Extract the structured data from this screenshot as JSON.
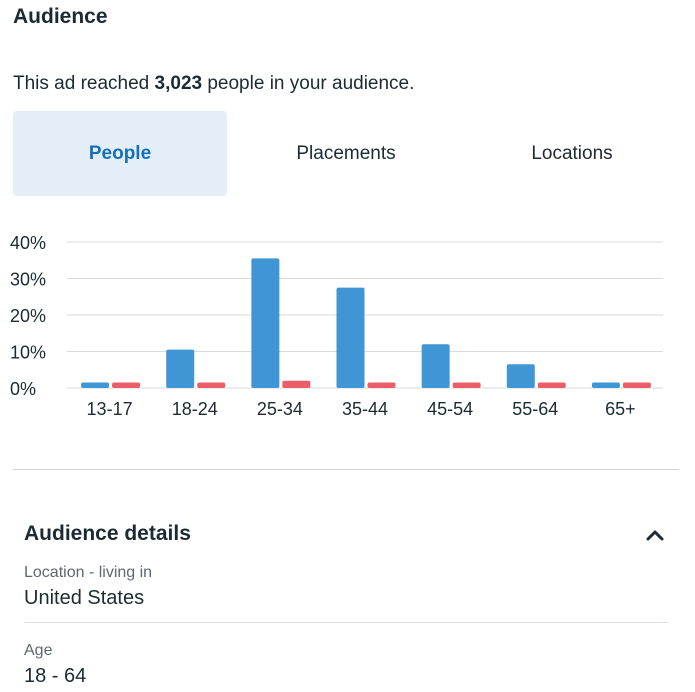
{
  "header": {
    "title": "Audience"
  },
  "reach": {
    "prefix": "This ad reached ",
    "count": "3,023",
    "suffix": " people in your audience."
  },
  "tabs": [
    {
      "label": "People",
      "active": true
    },
    {
      "label": "Placements",
      "active": false
    },
    {
      "label": "Locations",
      "active": false
    }
  ],
  "colors": {
    "series_a": "#4096d4",
    "series_b": "#eb5e68",
    "accent": "#1570b8",
    "active_tab_bg": "#e3eef8"
  },
  "chart_data": {
    "type": "bar",
    "categories": [
      "13-17",
      "18-24",
      "25-34",
      "35-44",
      "45-54",
      "55-64",
      "65+"
    ],
    "series": [
      {
        "values": [
          1.5,
          10.5,
          35.5,
          27.5,
          12.0,
          6.5,
          1.5
        ]
      },
      {
        "values": [
          1.5,
          1.5,
          2.0,
          1.5,
          1.5,
          1.5,
          1.5
        ]
      }
    ],
    "ylim": [
      0,
      40
    ],
    "yticks": [
      "0%",
      "10%",
      "20%",
      "30%",
      "40%"
    ],
    "ytick_values": [
      0,
      10,
      20,
      30,
      40
    ],
    "grid": true,
    "legend": "none"
  },
  "details": {
    "title": "Audience details",
    "chevron_icon": "chevron-up-icon",
    "location_label": "Location - living in",
    "location_value": "United States",
    "age_label": "Age",
    "age_value": "18 - 64"
  }
}
